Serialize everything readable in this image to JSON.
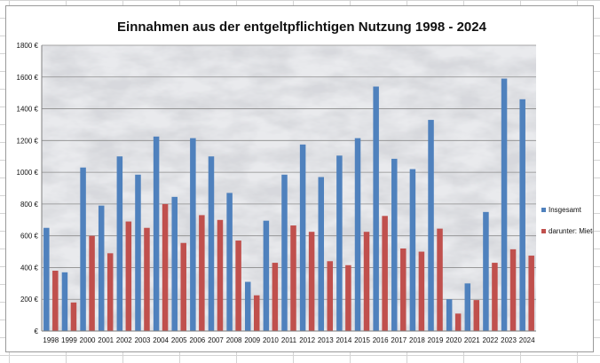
{
  "spreadsheet": {
    "background": "#ffffff",
    "gridline_color": "#d4d4d4"
  },
  "chart_data": {
    "type": "bar",
    "title": "Einnahmen aus der entgeltpflichtigen Nutzung 1998 - 2024",
    "xlabel": "",
    "ylabel": "",
    "ylim": [
      0,
      1800
    ],
    "ytick_values": [
      0,
      200,
      400,
      600,
      800,
      1000,
      1200,
      1400,
      1600,
      1800
    ],
    "ytick_labels": [
      "€",
      "200 €",
      "400 €",
      "600 €",
      "800 €",
      "1000 €",
      "1200 €",
      "1400 €",
      "1600 €",
      "1800 €"
    ],
    "grid": true,
    "legend_position": "right",
    "plot_background": "marble",
    "categories": [
      "1998",
      "1999",
      "2000",
      "2001",
      "2002",
      "2003",
      "2004",
      "2005",
      "2006",
      "2007",
      "2008",
      "2009",
      "2010",
      "2011",
      "2012",
      "2013",
      "2014",
      "2015",
      "2016",
      "2017",
      "2018",
      "2019",
      "2020",
      "2021",
      "2022",
      "2023",
      "2024"
    ],
    "series": [
      {
        "name": "Insgesamt",
        "color": "#4f81bd",
        "values": [
          650,
          370,
          1030,
          790,
          1100,
          985,
          1225,
          845,
          1215,
          1100,
          870,
          310,
          695,
          985,
          1175,
          970,
          1105,
          1215,
          1540,
          1085,
          1020,
          1330,
          200,
          300,
          750,
          1590,
          1460
        ]
      },
      {
        "name": "darunter: Miete",
        "color": "#c0504d",
        "values": [
          380,
          180,
          600,
          490,
          690,
          650,
          800,
          555,
          730,
          700,
          570,
          225,
          430,
          665,
          625,
          440,
          415,
          625,
          725,
          520,
          500,
          645,
          110,
          195,
          430,
          515,
          475
        ]
      }
    ]
  }
}
